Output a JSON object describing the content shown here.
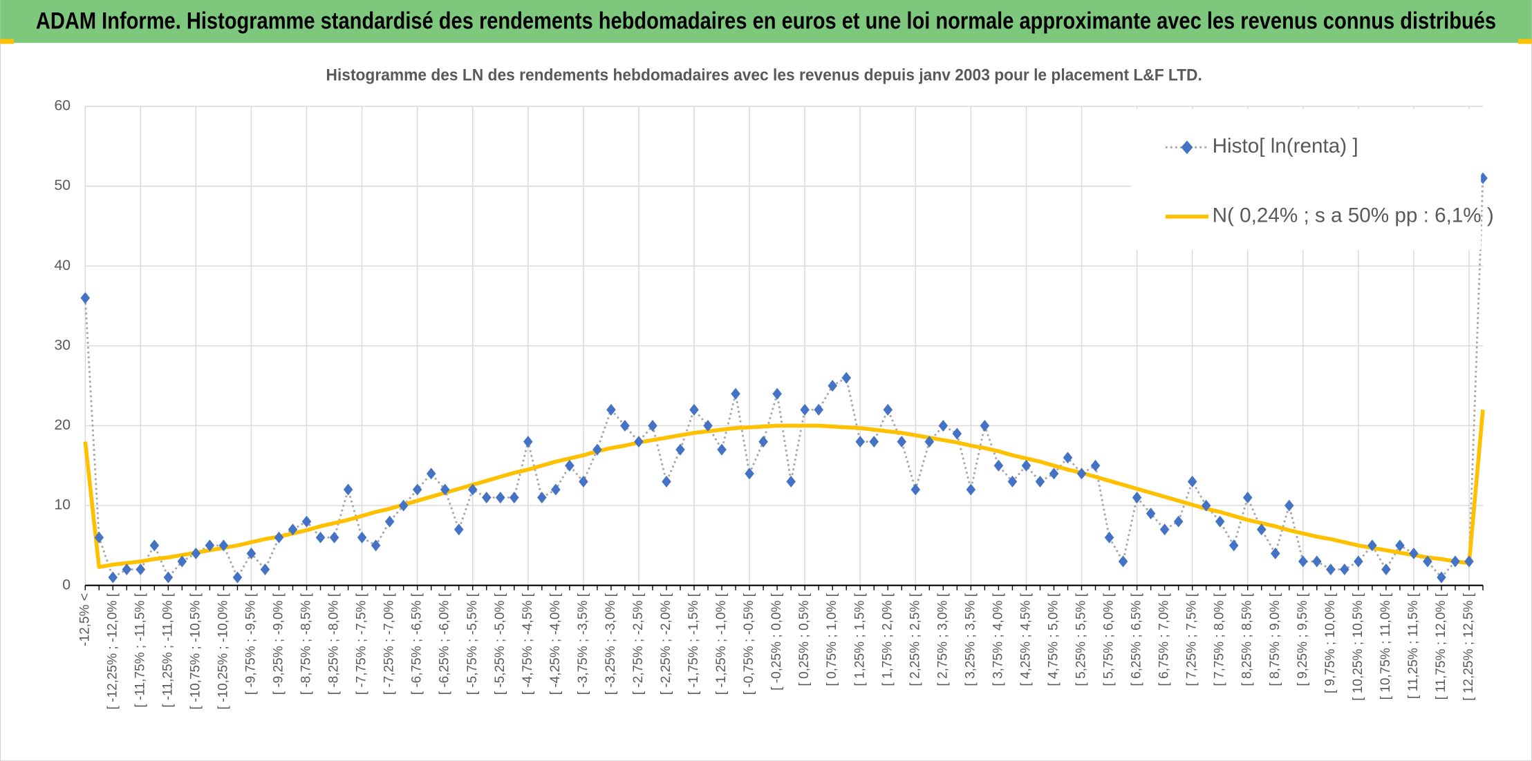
{
  "header": {
    "title": "ADAM Informe. Histogramme standardisé des rendements hebdomadaires en euros et une loi normale approximante avec les revenus connus distribués"
  },
  "chart_data": {
    "type": "line",
    "title": "Histogramme des LN des rendements hebdomadaires avec les revenus depuis janv 2003 pour le placement L&F LTD.",
    "categories": [
      "-12,5% <",
      null,
      "[ -12,25% ; -12,0% [",
      null,
      "[ -11,75% ; -11,5% [",
      null,
      "[ -11,25% ; -11,0% [",
      null,
      "[ -10,75% ; -10,5% [",
      null,
      "[ -10,25% ; -10,0% [",
      null,
      "[ -9,75% ; -9,5% [",
      null,
      "[ -9,25% ; -9,0% [",
      null,
      "[ -8,75% ; -8,5% [",
      null,
      "[ -8,25% ; -8,0% [",
      null,
      "[ -7,75% ; -7,5% [",
      null,
      "[ -7,25% ; -7,0% [",
      null,
      "[ -6,75% ; -6,5% [",
      null,
      "[ -6,25% ; -6,0% [",
      null,
      "[ -5,75% ; -5,5% [",
      null,
      "[ -5,25% ; -5,0% [",
      null,
      "[ -4,75% ; -4,5% [",
      null,
      "[ -4,25% ; -4,0% [",
      null,
      "[ -3,75% ; -3,5% [",
      null,
      "[ -3,25% ; -3,0% [",
      null,
      "[ -2,75% ; -2,5% [",
      null,
      "[ -2,25% ; -2,0% [",
      null,
      "[ -1,75% ; -1,5% [",
      null,
      "[ -1,25% ; -1,0% [",
      null,
      "[ -0,75% ; -0,5% [",
      null,
      "[ -0,25% ; 0,0% [",
      null,
      "[ 0,25% ; 0,5% [",
      null,
      "[ 0,75% ; 1,0% [",
      null,
      "[ 1,25% ; 1,5% [",
      null,
      "[ 1,75% ; 2,0% [",
      null,
      "[ 2,25% ; 2,5% [",
      null,
      "[ 2,75% ; 3,0% [",
      null,
      "[ 3,25% ; 3,5% [",
      null,
      "[ 3,75% ; 4,0% [",
      null,
      "[ 4,25% ; 4,5% [",
      null,
      "[ 4,75% ; 5,0% [",
      null,
      "[ 5,25% ; 5,5% [",
      null,
      "[ 5,75% ; 6,0% [",
      null,
      "[ 6,25% ; 6,5% [",
      null,
      "[ 6,75% ; 7,0% [",
      null,
      "[ 7,25% ; 7,5% [",
      null,
      "[ 7,75% ; 8,0% [",
      null,
      "[ 8,25% ; 8,5% [",
      null,
      "[ 8,75% ; 9,0% [",
      null,
      "[ 9,25% ; 9,5% [",
      null,
      "[ 9,75% ; 10,0% [",
      null,
      "[ 10,25% ; 10,5% [",
      null,
      "[ 10,75% ; 11,0% [",
      null,
      "[ 11,25% ; 11,5% [",
      null,
      "[ 11,75% ; 12,0% [",
      null,
      "[ 12,25% ; 12,5% [",
      null
    ],
    "series": [
      {
        "name": "Histo[ ln(renta) ]",
        "color": "#4472c4",
        "line_color": "#a6a6a6",
        "marker": "diamond",
        "values": [
          36,
          6,
          1,
          2,
          2,
          5,
          1,
          3,
          4,
          5,
          5,
          1,
          4,
          2,
          6,
          7,
          8,
          6,
          6,
          12,
          6,
          5,
          8,
          10,
          12,
          14,
          12,
          7,
          12,
          11,
          11,
          11,
          18,
          11,
          12,
          15,
          13,
          17,
          22,
          20,
          18,
          20,
          13,
          17,
          22,
          20,
          17,
          24,
          14,
          18,
          24,
          13,
          22,
          22,
          25,
          26,
          18,
          18,
          22,
          18,
          12,
          18,
          20,
          19,
          12,
          20,
          15,
          13,
          15,
          13,
          14,
          16,
          14,
          15,
          6,
          3,
          11,
          9,
          7,
          8,
          13,
          10,
          8,
          5,
          11,
          7,
          4,
          10,
          3,
          3,
          2,
          2,
          3,
          5,
          2,
          5,
          4,
          3,
          1,
          3,
          3,
          51
        ]
      },
      {
        "name": "N( 0,24% ; s a 50% pp : 6,1% )",
        "color": "#ffc000",
        "values": [
          18,
          2.3,
          2.6,
          2.8,
          3.0,
          3.3,
          3.5,
          3.8,
          4.1,
          4.4,
          4.7,
          5.0,
          5.4,
          5.8,
          6.1,
          6.5,
          6.9,
          7.4,
          7.8,
          8.2,
          8.7,
          9.2,
          9.6,
          10.1,
          10.6,
          11.1,
          11.6,
          12.1,
          12.6,
          13.1,
          13.6,
          14.1,
          14.5,
          15.0,
          15.5,
          15.9,
          16.3,
          16.8,
          17.2,
          17.5,
          17.9,
          18.2,
          18.5,
          18.8,
          19.1,
          19.3,
          19.5,
          19.7,
          19.8,
          19.9,
          20.0,
          20.0,
          20.0,
          20.0,
          19.9,
          19.8,
          19.7,
          19.5,
          19.3,
          19.1,
          18.8,
          18.5,
          18.2,
          17.9,
          17.5,
          17.2,
          16.8,
          16.3,
          15.9,
          15.5,
          15.0,
          14.5,
          14.1,
          13.6,
          13.1,
          12.6,
          12.1,
          11.6,
          11.1,
          10.6,
          10.1,
          9.6,
          9.2,
          8.7,
          8.2,
          7.8,
          7.4,
          6.9,
          6.5,
          6.1,
          5.8,
          5.4,
          5.0,
          4.7,
          4.4,
          4.1,
          3.8,
          3.5,
          3.3,
          3.0,
          2.8,
          22
        ]
      }
    ],
    "ylim": [
      0,
      60
    ],
    "yticks": [
      0,
      10,
      20,
      30,
      40,
      50,
      60
    ],
    "grid": true,
    "legend": "top-right"
  }
}
